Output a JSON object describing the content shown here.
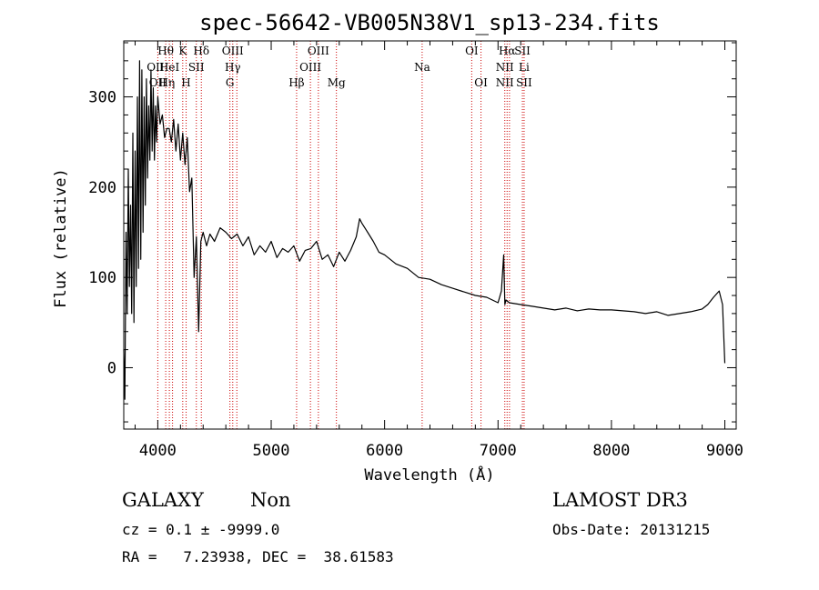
{
  "chart_data": {
    "type": "line",
    "title": "spec-56642-VB005N38V1_sp13-234.fits",
    "xlabel": "Wavelength (Å)",
    "ylabel": "Flux (relative)",
    "xlim": [
      3700,
      9100
    ],
    "ylim": [
      -68,
      362
    ],
    "xticks": [
      4000,
      5000,
      6000,
      7000,
      8000,
      9000
    ],
    "yticks": [
      0,
      100,
      200,
      300
    ],
    "grid": false,
    "line_color": "#000000",
    "marker_color": "#cc0000",
    "series": [
      {
        "x": [
          3700,
          3710,
          3720,
          3730,
          3740,
          3750,
          3760,
          3770,
          3780,
          3790,
          3800,
          3810,
          3820,
          3830,
          3840,
          3850,
          3860,
          3870,
          3880,
          3890,
          3900,
          3910,
          3920,
          3930,
          3940,
          3950,
          3960,
          3970,
          3980,
          3990,
          4000,
          4020,
          4040,
          4060,
          4080,
          4100,
          4120,
          4140,
          4160,
          4180,
          4200,
          4220,
          4240,
          4260,
          4280,
          4300,
          4320,
          4340,
          4360,
          4380,
          4400,
          4430,
          4460,
          4500,
          4550,
          4600,
          4650,
          4700,
          4750,
          4800,
          4850,
          4900,
          4950,
          5000,
          5050,
          5100,
          5150,
          5200,
          5250,
          5300,
          5350,
          5400,
          5450,
          5500,
          5550,
          5600,
          5650,
          5700,
          5750,
          5780,
          5800,
          5850,
          5900,
          5950,
          6000,
          6100,
          6200,
          6300,
          6400,
          6500,
          6600,
          6700,
          6800,
          6900,
          7000,
          7030,
          7050,
          7060,
          7070,
          7100,
          7200,
          7300,
          7400,
          7500,
          7600,
          7700,
          7800,
          7900,
          8000,
          8100,
          8200,
          8300,
          8400,
          8500,
          8600,
          8700,
          8800,
          8850,
          8900,
          8950,
          8980,
          9000
        ],
        "y": [
          20,
          -35,
          150,
          60,
          220,
          90,
          180,
          60,
          260,
          50,
          240,
          90,
          300,
          110,
          340,
          120,
          330,
          150,
          300,
          180,
          320,
          210,
          290,
          230,
          330,
          240,
          310,
          230,
          290,
          250,
          300,
          270,
          280,
          255,
          265,
          265,
          250,
          275,
          240,
          270,
          230,
          260,
          225,
          255,
          195,
          210,
          100,
          145,
          40,
          140,
          150,
          135,
          148,
          140,
          155,
          150,
          143,
          148,
          135,
          145,
          125,
          135,
          128,
          140,
          122,
          132,
          128,
          135,
          118,
          130,
          132,
          140,
          120,
          125,
          112,
          128,
          118,
          130,
          145,
          165,
          160,
          150,
          140,
          128,
          125,
          115,
          110,
          100,
          98,
          92,
          88,
          84,
          80,
          78,
          72,
          85,
          125,
          70,
          75,
          72,
          70,
          68,
          66,
          64,
          66,
          63,
          65,
          64,
          64,
          63,
          62,
          60,
          62,
          58,
          60,
          62,
          65,
          70,
          78,
          85,
          70,
          5
        ]
      }
    ],
    "lines": [
      {
        "x": 4000,
        "label": "",
        "row": 0
      },
      {
        "x": 4070,
        "label": "",
        "row": 0
      },
      {
        "x": 4102,
        "label": "",
        "row": 0
      },
      {
        "x": 4130,
        "label": "",
        "row": 0
      },
      {
        "x": 4220,
        "label": "",
        "row": 0
      },
      {
        "x": 4250,
        "label": "",
        "row": 0
      },
      {
        "x": 4340,
        "label": "",
        "row": 0
      },
      {
        "x": 4384,
        "label": "",
        "row": 0
      },
      {
        "x": 4636,
        "label": "",
        "row": 0
      },
      {
        "x": 4661,
        "label": "",
        "row": 0
      },
      {
        "x": 4697,
        "label": "",
        "row": 0
      },
      {
        "x": 5224,
        "label": "",
        "row": 0
      },
      {
        "x": 5346,
        "label": "",
        "row": 0
      },
      {
        "x": 5416,
        "label": "",
        "row": 0
      },
      {
        "x": 5575,
        "label": "",
        "row": 0
      },
      {
        "x": 6331,
        "label": "",
        "row": 0
      },
      {
        "x": 6768,
        "label": "",
        "row": 0
      },
      {
        "x": 6850,
        "label": "",
        "row": 0
      },
      {
        "x": 7060,
        "label": "",
        "row": 0
      },
      {
        "x": 7080,
        "label": "",
        "row": 0
      },
      {
        "x": 7101,
        "label": "",
        "row": 0
      },
      {
        "x": 7215,
        "label": "",
        "row": 0
      },
      {
        "x": 7230,
        "label": "",
        "row": 0
      }
    ],
    "labels": [
      {
        "x": 4000,
        "text": "OII",
        "row": 2
      },
      {
        "x": 3980,
        "text": "OII",
        "row": 1
      },
      {
        "x": 4070,
        "text": "Hθ",
        "row": 0
      },
      {
        "x": 4080,
        "text": "Hη",
        "row": 2
      },
      {
        "x": 4102,
        "text": "HeI",
        "row": 1
      },
      {
        "x": 4220,
        "text": "K",
        "row": 0
      },
      {
        "x": 4250,
        "text": "H",
        "row": 2
      },
      {
        "x": 4384,
        "text": "Hδ",
        "row": 0
      },
      {
        "x": 4340,
        "text": "SII",
        "row": 1
      },
      {
        "x": 4661,
        "text": "OIII",
        "row": 0
      },
      {
        "x": 4661,
        "text": "Hγ",
        "row": 1
      },
      {
        "x": 4636,
        "text": "G",
        "row": 2
      },
      {
        "x": 5224,
        "text": "Hβ",
        "row": 2
      },
      {
        "x": 5416,
        "text": "OIII",
        "row": 0
      },
      {
        "x": 5346,
        "text": "OIII",
        "row": 1
      },
      {
        "x": 5575,
        "text": "Mg",
        "row": 2
      },
      {
        "x": 6331,
        "text": "Na",
        "row": 1
      },
      {
        "x": 6768,
        "text": "OI",
        "row": 0
      },
      {
        "x": 6850,
        "text": "OI",
        "row": 2
      },
      {
        "x": 7080,
        "text": "Hα",
        "row": 0
      },
      {
        "x": 7060,
        "text": "NII",
        "row": 1
      },
      {
        "x": 7060,
        "text": "NII",
        "row": 2
      },
      {
        "x": 7215,
        "text": "SII",
        "row": 0
      },
      {
        "x": 7230,
        "text": "Li",
        "row": 1
      },
      {
        "x": 7230,
        "text": "SII",
        "row": 2
      }
    ]
  },
  "info": {
    "class": "GALAXY",
    "subclass": "Non",
    "survey": "LAMOST DR3",
    "cz": "cz = 0.1 ± -9999.0",
    "obs_date": "Obs-Date: 20131215",
    "radec": "RA =   7.23938, DEC =  38.61583"
  }
}
